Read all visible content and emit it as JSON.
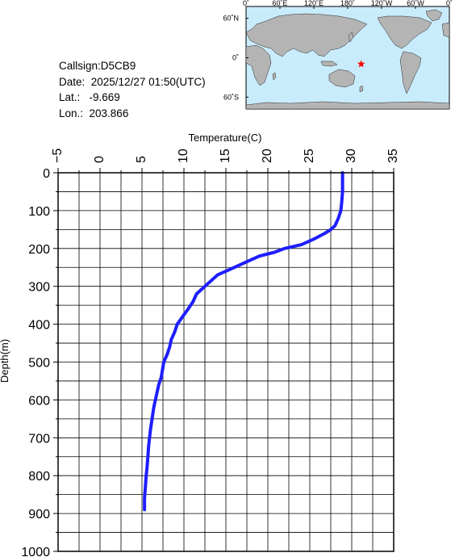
{
  "info": {
    "callsign": "Callsign:D5CB9",
    "date": "Date:  2025/12/27 01:50(UTC)",
    "lat": "Lat.:   -9.669",
    "lon": "Lon.:  203.866"
  },
  "map": {
    "top_labels": [
      "0˚",
      "60˚E",
      "120˚E",
      "180˚",
      "120˚W",
      "60˚W",
      "0˚"
    ],
    "left_labels": [
      "60˚N",
      "0˚",
      "60˚S"
    ],
    "ocean_color": "#c9ecfc",
    "land_color": "#b4b4b4",
    "marker_color": "#ff0000",
    "marker_icon": "star-icon",
    "marker": {
      "lon": 203.866,
      "lat": -9.669
    }
  },
  "chart_data": {
    "type": "line",
    "xlabel": "Temperature(C)",
    "ylabel": "Depth(m)",
    "xlim": [
      -5,
      35
    ],
    "ylim": [
      0,
      1000
    ],
    "y_inverted": true,
    "x_axis_position": "top",
    "grid": true,
    "x_ticks": [
      -5,
      0,
      5,
      10,
      15,
      20,
      25,
      30,
      35
    ],
    "y_ticks": [
      0,
      100,
      200,
      300,
      400,
      500,
      600,
      700,
      800,
      900,
      1000
    ],
    "line_color": "#1e1eff",
    "series": [
      {
        "x": [
          28.9,
          28.9,
          28.8,
          28.7,
          28.4,
          28.0,
          27.5,
          26.8,
          25.5,
          24.0,
          22.0,
          20.8,
          19.0,
          17.5,
          16.0,
          15.0,
          14.0,
          13.5,
          12.5,
          12.0,
          11.5,
          11.1,
          10.5,
          10.0,
          9.2,
          8.9,
          8.5,
          8.3,
          8.0,
          7.6,
          7.3,
          7.0,
          6.6,
          6.4,
          6.2,
          6.0,
          5.9,
          5.8,
          5.7,
          5.6,
          5.5,
          5.4,
          5.3,
          5.3
        ],
        "y": [
          0,
          50,
          80,
          100,
          120,
          140,
          150,
          160,
          175,
          190,
          200,
          210,
          220,
          235,
          250,
          260,
          270,
          280,
          300,
          310,
          320,
          340,
          360,
          375,
          400,
          420,
          440,
          460,
          480,
          500,
          540,
          560,
          600,
          620,
          650,
          680,
          700,
          720,
          750,
          780,
          800,
          830,
          860,
          890
        ]
      }
    ]
  }
}
